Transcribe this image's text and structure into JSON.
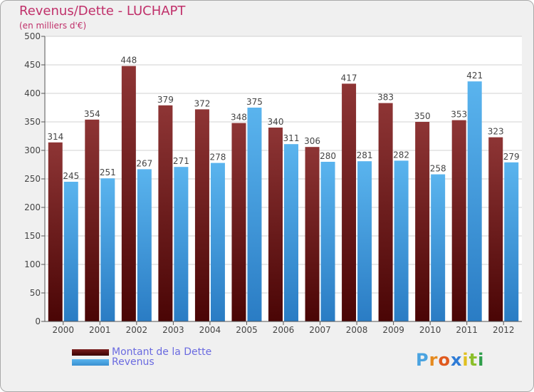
{
  "chart_data": {
    "type": "bar",
    "title": "Revenus/Dette - LUCHAPT",
    "subtitle": "(en milliers d'€)",
    "categories": [
      "2000",
      "2001",
      "2002",
      "2003",
      "2004",
      "2005",
      "2006",
      "2007",
      "2008",
      "2009",
      "2010",
      "2011",
      "2012"
    ],
    "series": [
      {
        "name": "Montant de la Dette",
        "values": [
          314,
          354,
          448,
          379,
          372,
          348,
          340,
          306,
          417,
          383,
          350,
          353,
          323
        ],
        "color": "#7a1f1f"
      },
      {
        "name": "Revenus",
        "values": [
          245,
          251,
          267,
          271,
          278,
          375,
          311,
          280,
          281,
          282,
          258,
          421,
          279
        ],
        "color": "#4aa3e0"
      }
    ],
    "ylim": [
      0,
      500
    ],
    "yticks": [
      0,
      50,
      100,
      150,
      200,
      250,
      300,
      350,
      400,
      450,
      500
    ],
    "grid": true,
    "legend": "bottom-left"
  },
  "branding": {
    "logo_text": "Proxiti",
    "logo_colors": [
      "#4aa3e0",
      "#e58a1f",
      "#e05a1f",
      "#2e7bd6",
      "#e0c020",
      "#8bbf2a",
      "#2e9e4a"
    ]
  }
}
